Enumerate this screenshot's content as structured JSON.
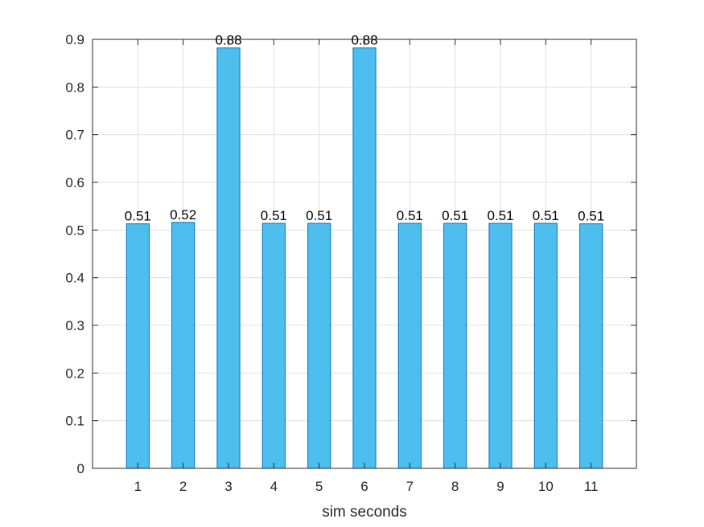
{
  "chart_data": {
    "type": "bar",
    "categories": [
      "1",
      "2",
      "3",
      "4",
      "5",
      "6",
      "7",
      "8",
      "9",
      "10",
      "11"
    ],
    "values": [
      0.513,
      0.516,
      0.882,
      0.514,
      0.514,
      0.882,
      0.514,
      0.514,
      0.514,
      0.514,
      0.513
    ],
    "data_labels": [
      "0.51",
      "0.52",
      "0.88",
      "0.51",
      "0.51",
      "0.88",
      "0.51",
      "0.51",
      "0.51",
      "0.51",
      "0.51"
    ],
    "xlabel": "sim seconds",
    "ylabel": "",
    "ylim": [
      0,
      0.9
    ],
    "yticks": [
      "0",
      "0.1",
      "0.2",
      "0.3",
      "0.4",
      "0.5",
      "0.6",
      "0.7",
      "0.8",
      "0.9"
    ],
    "grid": true,
    "colors": {
      "bar_fill": "#4DBEEE",
      "bar_edge": "#0072BD",
      "axis": "#262626",
      "grid": "#e0e0e0"
    }
  }
}
